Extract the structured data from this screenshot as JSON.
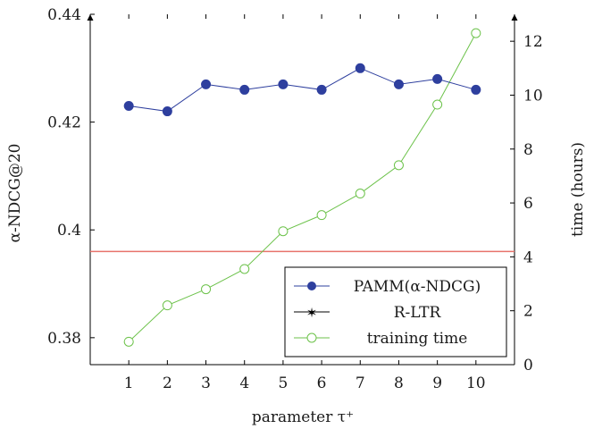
{
  "chart_data": {
    "type": "line",
    "x": [
      1,
      2,
      3,
      4,
      5,
      6,
      7,
      8,
      9,
      10
    ],
    "x_ticks": [
      "1",
      "2",
      "3",
      "4",
      "5",
      "6",
      "7",
      "8",
      "9",
      "10"
    ],
    "xlim": [
      0,
      11
    ],
    "xlabel": "parameter τ⁺",
    "y_left": {
      "label": "α-NDCG@20",
      "lim": [
        0.375,
        0.44
      ],
      "ticks": [
        0.38,
        0.4,
        0.42,
        0.44
      ],
      "tick_labels": [
        "0.38",
        "0.4",
        "0.42",
        "0.44"
      ]
    },
    "y_right": {
      "label": "time (hours)",
      "lim": [
        0,
        13
      ],
      "ticks": [
        0,
        2,
        4,
        6,
        8,
        10,
        12
      ],
      "tick_labels": [
        "0",
        "2",
        "4",
        "6",
        "8",
        "10",
        "12"
      ]
    },
    "series": [
      {
        "name": "PAMM(α-NDCG)",
        "axis": "left",
        "color": "#2e3f9e",
        "marker": "filled-circle",
        "values": [
          0.423,
          0.422,
          0.427,
          0.426,
          0.427,
          0.426,
          0.43,
          0.427,
          0.428,
          0.426
        ]
      },
      {
        "name": "R-LTR",
        "axis": "left",
        "color": "#e8736c",
        "marker": "star",
        "constant": 0.396
      },
      {
        "name": "training time",
        "axis": "right",
        "color": "#6cc24a",
        "marker": "open-circle",
        "values": [
          0.85,
          2.2,
          2.8,
          3.55,
          4.95,
          5.55,
          6.35,
          7.4,
          9.65,
          12.3
        ]
      }
    ],
    "legend_position": "bottom-right",
    "grid": false
  }
}
